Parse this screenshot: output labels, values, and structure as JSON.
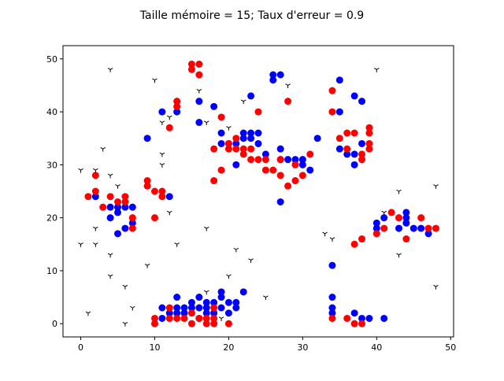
{
  "chart_data": {
    "type": "scatter",
    "title": "Taille mémoire = 15; Taux d'erreur = 0.9",
    "xlabel": "",
    "ylabel": "",
    "xlim": [
      -2.4,
      50.4
    ],
    "ylim": [
      -2.5,
      52.5
    ],
    "xticks": [
      0,
      10,
      20,
      30,
      40,
      50
    ],
    "yticks": [
      0,
      10,
      20,
      30,
      40,
      50
    ],
    "grid": false,
    "series": [
      {
        "marker": "circle",
        "color": "#0000ff",
        "points": [
          [
            2,
            24
          ],
          [
            4,
            22
          ],
          [
            4,
            20
          ],
          [
            5,
            21
          ],
          [
            5,
            22
          ],
          [
            5,
            17
          ],
          [
            6,
            22
          ],
          [
            6,
            18
          ],
          [
            7,
            22
          ],
          [
            7,
            19
          ],
          [
            9,
            35
          ],
          [
            11,
            40
          ],
          [
            12,
            24
          ],
          [
            13,
            40
          ],
          [
            16,
            42
          ],
          [
            16,
            38
          ],
          [
            18,
            41
          ],
          [
            19,
            36
          ],
          [
            19,
            34
          ],
          [
            20,
            34
          ],
          [
            21,
            30
          ],
          [
            21,
            34
          ],
          [
            22,
            36
          ],
          [
            22,
            35
          ],
          [
            23,
            36
          ],
          [
            23,
            35
          ],
          [
            23,
            43
          ],
          [
            24,
            36
          ],
          [
            24,
            34
          ],
          [
            25,
            32
          ],
          [
            26,
            47
          ],
          [
            26,
            46
          ],
          [
            27,
            47
          ],
          [
            27,
            33
          ],
          [
            27,
            31
          ],
          [
            27,
            23
          ],
          [
            28,
            31
          ],
          [
            29,
            31
          ],
          [
            30,
            31
          ],
          [
            30,
            30
          ],
          [
            31,
            29
          ],
          [
            32,
            35
          ],
          [
            35,
            46
          ],
          [
            35,
            40
          ],
          [
            35,
            33
          ],
          [
            36,
            32
          ],
          [
            37,
            43
          ],
          [
            37,
            32
          ],
          [
            37,
            30
          ],
          [
            38,
            42
          ],
          [
            38,
            34
          ],
          [
            40,
            19
          ],
          [
            40,
            18
          ],
          [
            41,
            20
          ],
          [
            43,
            18
          ],
          [
            44,
            21
          ],
          [
            44,
            20
          ],
          [
            44,
            19
          ],
          [
            45,
            18
          ],
          [
            46,
            18
          ],
          [
            47,
            17
          ],
          [
            11,
            1
          ],
          [
            11,
            3
          ],
          [
            12,
            2
          ],
          [
            13,
            3
          ],
          [
            13,
            5
          ],
          [
            13,
            2
          ],
          [
            14,
            3
          ],
          [
            14,
            2
          ],
          [
            15,
            4
          ],
          [
            15,
            3
          ],
          [
            16,
            5
          ],
          [
            16,
            3
          ],
          [
            16,
            1
          ],
          [
            17,
            4
          ],
          [
            17,
            3
          ],
          [
            17,
            2
          ],
          [
            18,
            4
          ],
          [
            18,
            2
          ],
          [
            19,
            6
          ],
          [
            19,
            5
          ],
          [
            19,
            3
          ],
          [
            20,
            4
          ],
          [
            20,
            2
          ],
          [
            21,
            4
          ],
          [
            21,
            3
          ],
          [
            22,
            6
          ],
          [
            34,
            11
          ],
          [
            34,
            5
          ],
          [
            34,
            3
          ],
          [
            34,
            2
          ],
          [
            37,
            2
          ],
          [
            38,
            1
          ],
          [
            39,
            1
          ],
          [
            41,
            1
          ]
        ]
      },
      {
        "marker": "circle",
        "color": "#ff0000",
        "points": [
          [
            1,
            24
          ],
          [
            2,
            28
          ],
          [
            2,
            25
          ],
          [
            3,
            22
          ],
          [
            4,
            24
          ],
          [
            5,
            23
          ],
          [
            6,
            24
          ],
          [
            6,
            23
          ],
          [
            7,
            20
          ],
          [
            7,
            18
          ],
          [
            9,
            27
          ],
          [
            9,
            26
          ],
          [
            10,
            25
          ],
          [
            10,
            20
          ],
          [
            11,
            25
          ],
          [
            11,
            24
          ],
          [
            12,
            37
          ],
          [
            13,
            42
          ],
          [
            13,
            41
          ],
          [
            15,
            49
          ],
          [
            15,
            48
          ],
          [
            16,
            49
          ],
          [
            16,
            47
          ],
          [
            18,
            33
          ],
          [
            18,
            27
          ],
          [
            19,
            39
          ],
          [
            19,
            29
          ],
          [
            20,
            34
          ],
          [
            20,
            33
          ],
          [
            21,
            35
          ],
          [
            21,
            33
          ],
          [
            22,
            33
          ],
          [
            22,
            32
          ],
          [
            23,
            33
          ],
          [
            23,
            31
          ],
          [
            24,
            40
          ],
          [
            24,
            31
          ],
          [
            25,
            31
          ],
          [
            25,
            29
          ],
          [
            26,
            29
          ],
          [
            27,
            31
          ],
          [
            27,
            28
          ],
          [
            28,
            42
          ],
          [
            28,
            26
          ],
          [
            29,
            30
          ],
          [
            29,
            27
          ],
          [
            30,
            28
          ],
          [
            31,
            32
          ],
          [
            34,
            44
          ],
          [
            34,
            40
          ],
          [
            35,
            35
          ],
          [
            36,
            36
          ],
          [
            36,
            33
          ],
          [
            37,
            36
          ],
          [
            38,
            32
          ],
          [
            38,
            31
          ],
          [
            39,
            37
          ],
          [
            39,
            36
          ],
          [
            39,
            34
          ],
          [
            39,
            33
          ],
          [
            37,
            15
          ],
          [
            38,
            16
          ],
          [
            40,
            17
          ],
          [
            41,
            18
          ],
          [
            42,
            21
          ],
          [
            43,
            20
          ],
          [
            44,
            16
          ],
          [
            46,
            20
          ],
          [
            47,
            18
          ],
          [
            48,
            18
          ],
          [
            10,
            1
          ],
          [
            10,
            0
          ],
          [
            12,
            3
          ],
          [
            12,
            1
          ],
          [
            13,
            1
          ],
          [
            14,
            1
          ],
          [
            15,
            2
          ],
          [
            15,
            0
          ],
          [
            16,
            1
          ],
          [
            17,
            1
          ],
          [
            17,
            0
          ],
          [
            18,
            3
          ],
          [
            18,
            1
          ],
          [
            18,
            0
          ],
          [
            20,
            0
          ],
          [
            34,
            1
          ],
          [
            36,
            1
          ],
          [
            37,
            0
          ],
          [
            38,
            0
          ]
        ]
      },
      {
        "marker": "tri_down",
        "color": "#000000",
        "points": [
          [
            0,
            29
          ],
          [
            0,
            15
          ],
          [
            1,
            2
          ],
          [
            2,
            29
          ],
          [
            2,
            18
          ],
          [
            2,
            15
          ],
          [
            3,
            33
          ],
          [
            4,
            48
          ],
          [
            4,
            28
          ],
          [
            4,
            13
          ],
          [
            4,
            9
          ],
          [
            5,
            26
          ],
          [
            6,
            7
          ],
          [
            6,
            0
          ],
          [
            7,
            3
          ],
          [
            9,
            11
          ],
          [
            10,
            46
          ],
          [
            11,
            38
          ],
          [
            11,
            32
          ],
          [
            11,
            30
          ],
          [
            12,
            39
          ],
          [
            12,
            21
          ],
          [
            13,
            15
          ],
          [
            16,
            44
          ],
          [
            17,
            38
          ],
          [
            17,
            18
          ],
          [
            17,
            6
          ],
          [
            19,
            1
          ],
          [
            20,
            37
          ],
          [
            20,
            9
          ],
          [
            21,
            14
          ],
          [
            22,
            42
          ],
          [
            23,
            12
          ],
          [
            25,
            5
          ],
          [
            28,
            45
          ],
          [
            33,
            17
          ],
          [
            34,
            16
          ],
          [
            40,
            48
          ],
          [
            41,
            21
          ],
          [
            43,
            25
          ],
          [
            43,
            13
          ],
          [
            48,
            26
          ],
          [
            48,
            7
          ]
        ]
      }
    ]
  }
}
